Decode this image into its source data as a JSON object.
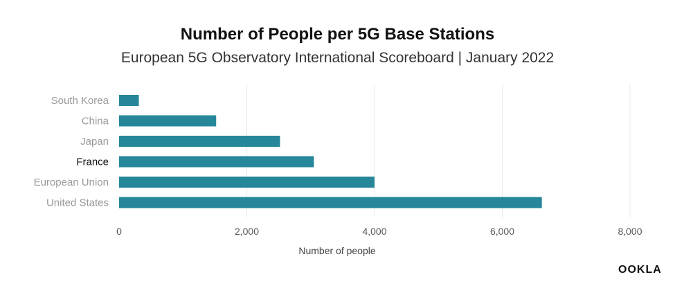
{
  "chart_data": {
    "type": "bar",
    "orientation": "horizontal",
    "title": "Number of People per 5G Base Stations",
    "subtitle": "European 5G Observatory International Scoreboard | January 2022",
    "xlabel": "Number of people",
    "ylabel": "",
    "categories": [
      "South Korea",
      "China",
      "Japan",
      "France",
      "European Union",
      "United States"
    ],
    "values": [
      310,
      1520,
      2520,
      3050,
      4000,
      6620
    ],
    "highlighted_category": "France",
    "xlim": [
      0,
      8000
    ],
    "xticks": [
      0,
      2000,
      4000,
      6000,
      8000
    ],
    "xtick_labels": [
      "0",
      "2,000",
      "4,000",
      "6,000",
      "8,000"
    ],
    "grid": "vertical",
    "legend": "none"
  },
  "colors": {
    "bar": "#26879B",
    "category_label": "#9a9a9a",
    "highlighted_label": "#111111",
    "grid": "#e8e8e8",
    "tick_label": "#555555"
  },
  "brand": {
    "logo_text": "OOKLA",
    "logo_icon": "ookla-logo"
  }
}
